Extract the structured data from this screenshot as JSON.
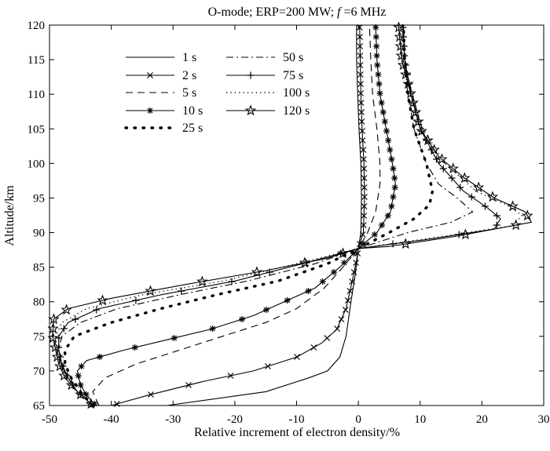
{
  "chart_data": {
    "type": "line",
    "title": "O-mode; ERP=200 MW; f =6 MHz",
    "title_parts": {
      "prefix": "O-mode; ERP=200 MW; ",
      "italic": "f",
      "suffix": " =6 MHz"
    },
    "xlabel": "Relative increment of electron density/%",
    "ylabel": "Altitude/km",
    "xlim": [
      -50,
      30
    ],
    "ylim": [
      65,
      120
    ],
    "xticks": [
      -50,
      -40,
      -30,
      -20,
      -10,
      0,
      10,
      20,
      30
    ],
    "yticks": [
      65,
      70,
      75,
      80,
      85,
      90,
      95,
      100,
      105,
      110,
      115,
      120
    ],
    "grid": false,
    "legend_position": "top-left",
    "series": [
      {
        "name": "1 s",
        "style": "solid",
        "marker": "none",
        "points": [
          [
            -31,
            65
          ],
          [
            -15,
            67
          ],
          [
            -8,
            69
          ],
          [
            -5,
            70
          ],
          [
            -3,
            72
          ],
          [
            -2,
            75
          ],
          [
            -1.2,
            80
          ],
          [
            -0.5,
            84
          ],
          [
            0,
            87.7
          ],
          [
            0.4,
            90
          ],
          [
            0.5,
            95
          ],
          [
            0.4,
            100
          ],
          [
            0.1,
            105
          ],
          [
            -0.1,
            110
          ],
          [
            -0.3,
            115
          ],
          [
            -0.3,
            120
          ]
        ]
      },
      {
        "name": "2 s",
        "style": "solid",
        "marker": "x",
        "points": [
          [
            -40,
            65
          ],
          [
            -34,
            66.5
          ],
          [
            -25,
            68.5
          ],
          [
            -17,
            70
          ],
          [
            -10,
            72
          ],
          [
            -6,
            74
          ],
          [
            -3.5,
            76
          ],
          [
            -2,
            79
          ],
          [
            -1,
            83
          ],
          [
            -0.3,
            86
          ],
          [
            0,
            87.7
          ],
          [
            0.8,
            90
          ],
          [
            1,
            95
          ],
          [
            0.9,
            100
          ],
          [
            0.6,
            105
          ],
          [
            0.4,
            110
          ],
          [
            0.3,
            115
          ],
          [
            0.2,
            120
          ]
        ]
      },
      {
        "name": "5 s",
        "style": "dash",
        "marker": "none",
        "points": [
          [
            -42,
            65
          ],
          [
            -43,
            67
          ],
          [
            -41,
            69
          ],
          [
            -36,
            71
          ],
          [
            -29,
            73
          ],
          [
            -22,
            75
          ],
          [
            -15,
            77
          ],
          [
            -10,
            79
          ],
          [
            -5.5,
            82
          ],
          [
            -2.5,
            85
          ],
          [
            0,
            87.7
          ],
          [
            1.5,
            90
          ],
          [
            2.8,
            93
          ],
          [
            3.5,
            97
          ],
          [
            3.5,
            100
          ],
          [
            3,
            105
          ],
          [
            2.3,
            110
          ],
          [
            2,
            115
          ],
          [
            1.8,
            120
          ]
        ]
      },
      {
        "name": "10 s",
        "style": "solid",
        "marker": "asterisk",
        "points": [
          [
            -42.5,
            65
          ],
          [
            -44,
            66.5
          ],
          [
            -45,
            68
          ],
          [
            -45.5,
            70
          ],
          [
            -44,
            71.5
          ],
          [
            -38,
            73
          ],
          [
            -31,
            74.5
          ],
          [
            -24,
            76
          ],
          [
            -17,
            78
          ],
          [
            -12,
            80
          ],
          [
            -7,
            82
          ],
          [
            -3,
            85
          ],
          [
            0,
            87.7
          ],
          [
            3,
            90
          ],
          [
            5.2,
            93
          ],
          [
            6,
            97
          ],
          [
            5.5,
            100
          ],
          [
            4.5,
            105
          ],
          [
            3.5,
            110
          ],
          [
            3,
            115
          ],
          [
            2.8,
            120
          ]
        ]
      },
      {
        "name": "25 s",
        "style": "dot",
        "marker": "none",
        "points": [
          [
            -43,
            65
          ],
          [
            -45,
            67
          ],
          [
            -46.5,
            69
          ],
          [
            -47.5,
            71
          ],
          [
            -47.5,
            73
          ],
          [
            -46,
            75
          ],
          [
            -40,
            77
          ],
          [
            -32,
            79
          ],
          [
            -23,
            81
          ],
          [
            -13,
            83
          ],
          [
            -5,
            85.5
          ],
          [
            0,
            87.7
          ],
          [
            5,
            90
          ],
          [
            9,
            92
          ],
          [
            11.5,
            94
          ],
          [
            12,
            96
          ],
          [
            11,
            100
          ],
          [
            9,
            105
          ],
          [
            8,
            110
          ],
          [
            7.5,
            115
          ],
          [
            7.3,
            120
          ]
        ]
      },
      {
        "name": "50 s",
        "style": "dashdot",
        "marker": "none",
        "points": [
          [
            -43,
            65
          ],
          [
            -45.5,
            67
          ],
          [
            -47,
            69
          ],
          [
            -48,
            71
          ],
          [
            -48.5,
            73
          ],
          [
            -48,
            75
          ],
          [
            -45,
            77
          ],
          [
            -39,
            79
          ],
          [
            -29,
            81
          ],
          [
            -18,
            83
          ],
          [
            -7,
            85.5
          ],
          [
            0,
            87.7
          ],
          [
            8,
            90
          ],
          [
            15,
            91.5
          ],
          [
            18.5,
            93
          ],
          [
            16,
            95
          ],
          [
            13,
            97
          ],
          [
            11,
            100
          ],
          [
            9,
            105
          ],
          [
            8,
            110
          ],
          [
            7.5,
            115
          ],
          [
            7.3,
            120
          ]
        ]
      },
      {
        "name": "75 s",
        "style": "solid",
        "marker": "plus",
        "points": [
          [
            -43,
            65
          ],
          [
            -45.5,
            67
          ],
          [
            -47,
            69
          ],
          [
            -48,
            71
          ],
          [
            -48.5,
            73
          ],
          [
            -48.5,
            75
          ],
          [
            -47,
            77
          ],
          [
            -42,
            79
          ],
          [
            -32,
            81
          ],
          [
            -20,
            83
          ],
          [
            -9,
            85.5
          ],
          [
            0,
            87.7
          ],
          [
            11,
            89
          ],
          [
            22,
            90.5
          ],
          [
            23,
            92
          ],
          [
            21,
            93.5
          ],
          [
            17,
            96
          ],
          [
            13,
            100
          ],
          [
            10,
            105
          ],
          [
            8.5,
            110
          ],
          [
            7.5,
            115
          ],
          [
            7.2,
            120
          ]
        ]
      },
      {
        "name": "100 s",
        "style": "dot_fine",
        "marker": "none",
        "points": [
          [
            -43,
            65
          ],
          [
            -45.5,
            67
          ],
          [
            -47,
            69
          ],
          [
            -48.3,
            71
          ],
          [
            -48.8,
            73
          ],
          [
            -49,
            75
          ],
          [
            -48,
            77
          ],
          [
            -44,
            79
          ],
          [
            -35,
            81
          ],
          [
            -22,
            83
          ],
          [
            -10,
            85.5
          ],
          [
            0,
            87.7
          ],
          [
            14,
            89.5
          ],
          [
            25,
            91
          ],
          [
            26.5,
            92.5
          ],
          [
            24,
            94
          ],
          [
            19,
            96
          ],
          [
            14,
            100
          ],
          [
            10.5,
            105
          ],
          [
            8.5,
            110
          ],
          [
            7.5,
            115
          ],
          [
            7,
            120
          ]
        ]
      },
      {
        "name": "120 s",
        "style": "solid",
        "marker": "star",
        "points": [
          [
            -43,
            65
          ],
          [
            -45.5,
            67
          ],
          [
            -47.5,
            69
          ],
          [
            -48.5,
            71
          ],
          [
            -49,
            73
          ],
          [
            -49.5,
            75
          ],
          [
            -49.3,
            77.5
          ],
          [
            -47,
            79
          ],
          [
            -40,
            80.5
          ],
          [
            -28,
            82.5
          ],
          [
            -15,
            84.5
          ],
          [
            -5,
            86.3
          ],
          [
            0,
            87.7
          ],
          [
            5,
            88
          ],
          [
            16,
            89.5
          ],
          [
            28,
            91.5
          ],
          [
            27,
            93
          ],
          [
            22,
            95
          ],
          [
            17,
            98
          ],
          [
            13,
            101
          ],
          [
            10,
            105
          ],
          [
            8.5,
            110
          ],
          [
            7,
            115
          ],
          [
            6.5,
            120
          ]
        ]
      }
    ]
  }
}
